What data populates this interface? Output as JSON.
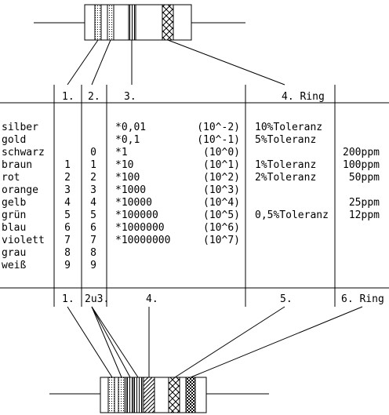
{
  "header": {
    "col1": "1.",
    "col2": "2.",
    "col3": "3.",
    "col4": "4. Ring"
  },
  "footer": {
    "col1": "1.",
    "col2": "2u3.",
    "col3": "4.",
    "col4": "5.",
    "col5": "6. Ring"
  },
  "rows": [
    {
      "color": "silber",
      "d1": "",
      "d2": "",
      "mult": "*0,01",
      "exp": "(10^-2)",
      "tol": "10%Toleranz",
      "tc": ""
    },
    {
      "color": "gold",
      "d1": "",
      "d2": "",
      "mult": "*0,1",
      "exp": "(10^-1)",
      "tol": "5%Toleranz",
      "tc": ""
    },
    {
      "color": "schwarz",
      "d1": "",
      "d2": "0",
      "mult": "*1",
      "exp": "(10^0)",
      "tol": "",
      "tc": "200ppm"
    },
    {
      "color": "braun",
      "d1": "1",
      "d2": "1",
      "mult": "*10",
      "exp": "(10^1)",
      "tol": "1%Toleranz",
      "tc": "100ppm"
    },
    {
      "color": "rot",
      "d1": "2",
      "d2": "2",
      "mult": "*100",
      "exp": "(10^2)",
      "tol": "2%Toleranz",
      "tc": "50ppm"
    },
    {
      "color": "orange",
      "d1": "3",
      "d2": "3",
      "mult": "*1000",
      "exp": "(10^3)",
      "tol": "",
      "tc": ""
    },
    {
      "color": "gelb",
      "d1": "4",
      "d2": "4",
      "mult": "*10000",
      "exp": "(10^4)",
      "tol": "",
      "tc": "25ppm"
    },
    {
      "color": "grün",
      "d1": "5",
      "d2": "5",
      "mult": "*100000",
      "exp": "(10^5)",
      "tol": "0,5%Toleranz",
      "tc": "12ppm"
    },
    {
      "color": "blau",
      "d1": "6",
      "d2": "6",
      "mult": "*1000000",
      "exp": "(10^6)",
      "tol": "",
      "tc": ""
    },
    {
      "color": "violett",
      "d1": "7",
      "d2": "7",
      "mult": "*10000000",
      "exp": "(10^7)",
      "tol": "",
      "tc": ""
    },
    {
      "color": "grau",
      "d1": "8",
      "d2": "8",
      "mult": "",
      "exp": "",
      "tol": "",
      "tc": ""
    },
    {
      "color": "weiß",
      "d1": "9",
      "d2": "9",
      "mult": "",
      "exp": "",
      "tol": "",
      "tc": ""
    }
  ]
}
